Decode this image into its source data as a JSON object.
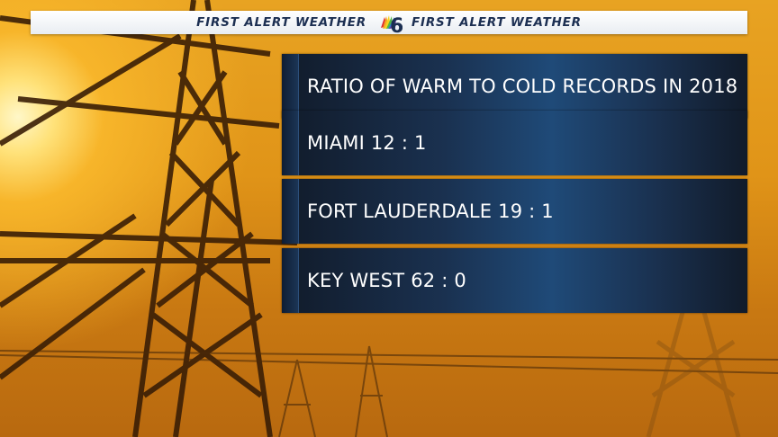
{
  "header": {
    "left_label": "FIRST ALERT WEATHER",
    "right_label": "FIRST ALERT WEATHER",
    "logo_icon": "nbc-6-peacock-logo-icon"
  },
  "panels": [
    {
      "text": "RATIO OF WARM TO COLD RECORDS IN 2018"
    },
    {
      "text": "MIAMI 12 : 1"
    },
    {
      "text": "FORT LAUDERDALE 19 : 1"
    },
    {
      "text": "KEY WEST 62 : 0"
    }
  ],
  "colors": {
    "panel_dark": "#111b2a",
    "panel_blue": "#1f4a78",
    "header_text": "#1c2f52",
    "sky_orange": "#e09418"
  }
}
